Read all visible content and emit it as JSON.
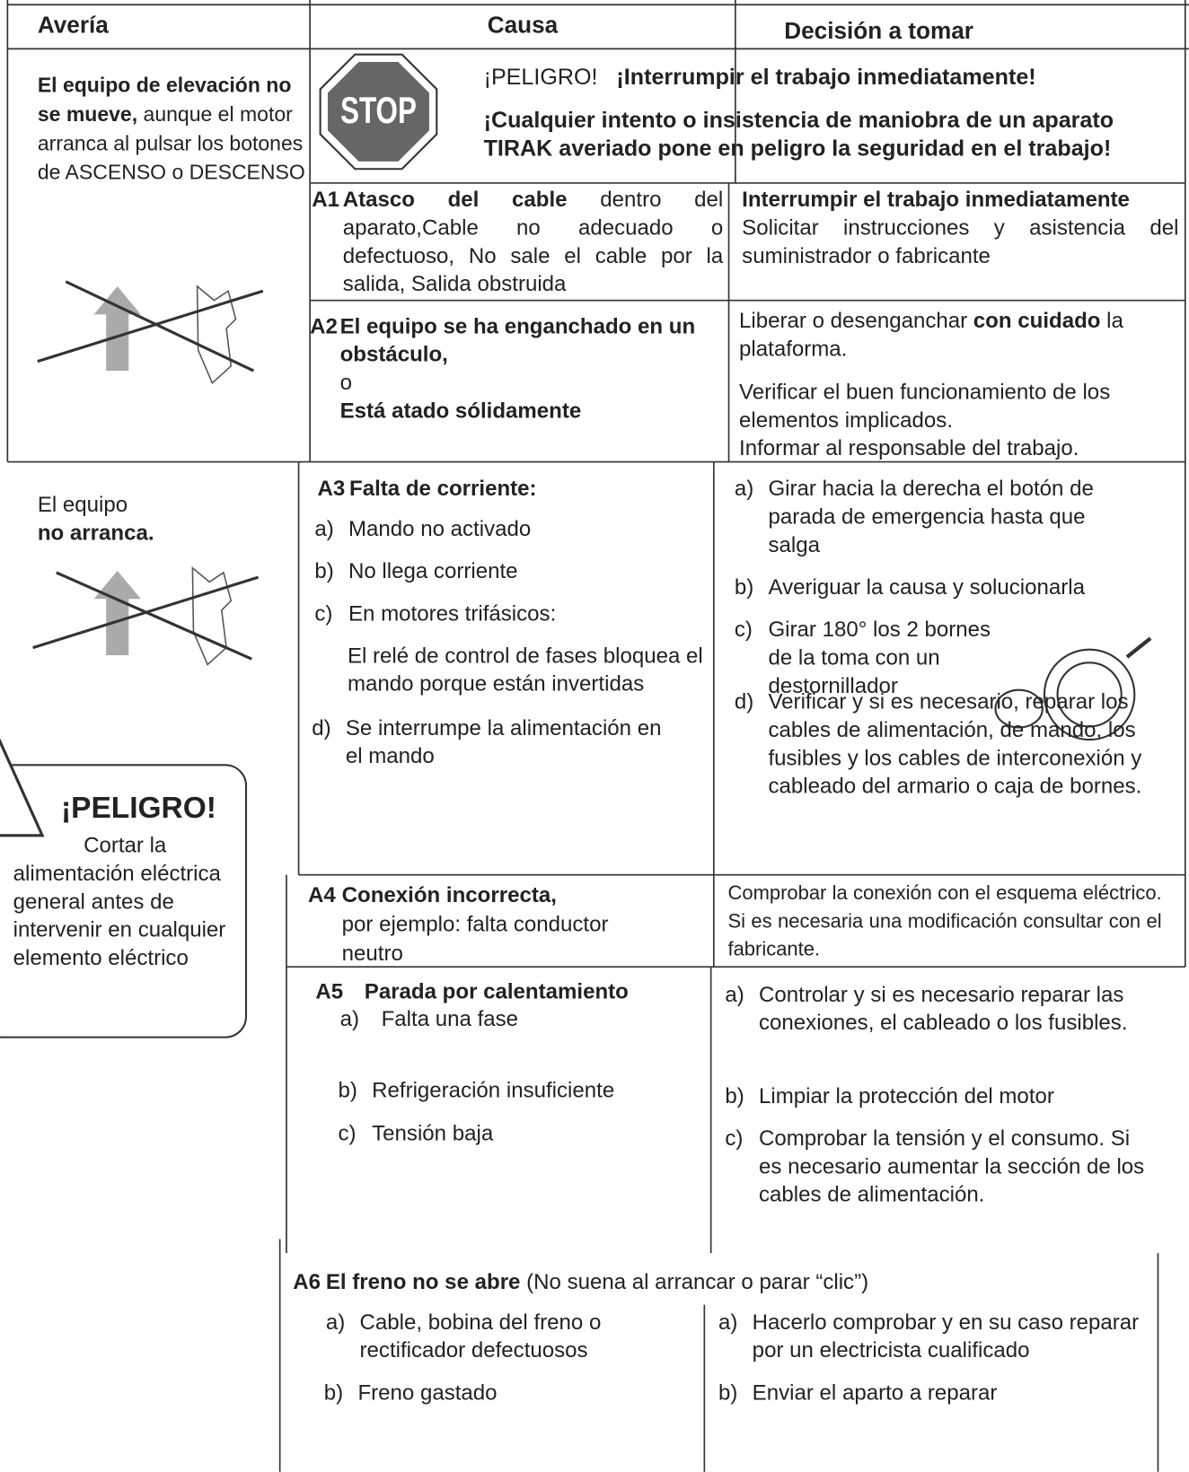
{
  "header": {
    "fault": "Avería",
    "cause": "Causa",
    "decision": "Decisión a tomar"
  },
  "fault_1": {
    "bold": "El equipo de elevación no se mueve,",
    "text": "aunque el motor arranca al pulsar los botones de ASCENSO o DESCENSO"
  },
  "danger_banner": {
    "sign": "STOP",
    "title": "¡PELIGRO!",
    "line1": "¡Interrumpir el trabajo inmediatamente!",
    "line2": "¡Cualquier intento o insistencia de maniobra de un aparato TIRAK averiado pone en peligro la seguridad en el trabajo!"
  },
  "a1": {
    "code": "A1",
    "cause_bold": "Atasco del cable",
    "cause": "dentro del aparato,Cable no adecuado o defectuoso, No sale el cable por la salida, Salida obstruida",
    "decision_bold": "Interrumpir el trabajo inmediatamente",
    "decision": "Solicitar instrucciones y asistencia del suministrador o fabricante"
  },
  "a2": {
    "code": "A2",
    "cause_bold_1": "El equipo se ha enganchado en un obstáculo,",
    "cause_or": "o",
    "cause_bold_2": "Está atado sólidamente",
    "decision_1": {
      "text": "Liberar o desenganchar",
      "bold": "con cuidado",
      "text2": "la plataforma."
    },
    "decision_2": "Verificar el buen funcionamiento de los elementos implicados.",
    "decision_3": "Informar al responsable del trabajo."
  },
  "fault_2": {
    "text": "El equipo",
    "bold": "no arranca."
  },
  "warning": {
    "title": "¡PELIGRO!",
    "text": "Cortar la alimentación eléctrica general antes de intervenir en cualquier elemento eléctrico"
  },
  "a3": {
    "code": "A3",
    "title": "Falta de corriente:",
    "causes": [
      {
        "label": "a)",
        "text": "Mando no activado"
      },
      {
        "label": "b)",
        "text": "No llega corriente"
      },
      {
        "label": "c)",
        "text": "En motores trifásicos:",
        "note": "El relé de control de fases bloquea el mando porque están invertidas"
      },
      {
        "label": "d)",
        "text": "Se interrumpe la alimentación en el mando"
      }
    ],
    "decisions": [
      {
        "label": "a)",
        "text": "Girar hacia la derecha el botón de parada de emergencia hasta que salga"
      },
      {
        "label": "b)",
        "text": "Averiguar la causa y solucionarla"
      },
      {
        "label": "c)",
        "text": "Girar 180° los 2 bornes de la toma con un destornillador"
      },
      {
        "label": "d)",
        "text": "Verificar y si es necesario, reparar los cables de alimentación, de mando, los fusibles y los cables de interconexión y cableado del armario o caja de bornes."
      }
    ]
  },
  "a4": {
    "code": "A4",
    "cause_bold": "Conexión incorrecta,",
    "cause": "por ejemplo: falta conductor neutro",
    "decision": "Comprobar la conexión con el esquema eléctrico. Si es necesaria una modificación consultar con el fabricante."
  },
  "a5": {
    "code": "A5",
    "title": "Parada por calentamiento",
    "causes": [
      {
        "label": "a)",
        "text": "Falta una fase"
      },
      {
        "label": "b)",
        "text": "Refrigeración insuficiente"
      },
      {
        "label": "c)",
        "text": "Tensión baja"
      }
    ],
    "decisions": [
      {
        "label": "a)",
        "text": "Controlar y si es necesario reparar las conexiones, el cableado o los fusibles."
      },
      {
        "label": "b)",
        "text": "Limpiar la protección del motor"
      },
      {
        "label": "c)",
        "text": "Comprobar la tensión y el consumo. Si es necesario aumentar la sección de los cables de alimentación."
      }
    ]
  },
  "a6": {
    "code": "A6",
    "title_bold": "El freno no se abre",
    "title": "(No suena al arrancar o parar “clic”)",
    "causes": [
      {
        "label": "a)",
        "text": "Cable, bobina del freno o rectificador defectuosos"
      },
      {
        "label": "b)",
        "text": "Freno gastado"
      }
    ],
    "decisions": [
      {
        "label": "a)",
        "text": "Hacerlo comprobar y en su caso reparar por un electricista cualificado"
      },
      {
        "label": "b)",
        "text": "Enviar el aparto a reparar"
      }
    ]
  }
}
